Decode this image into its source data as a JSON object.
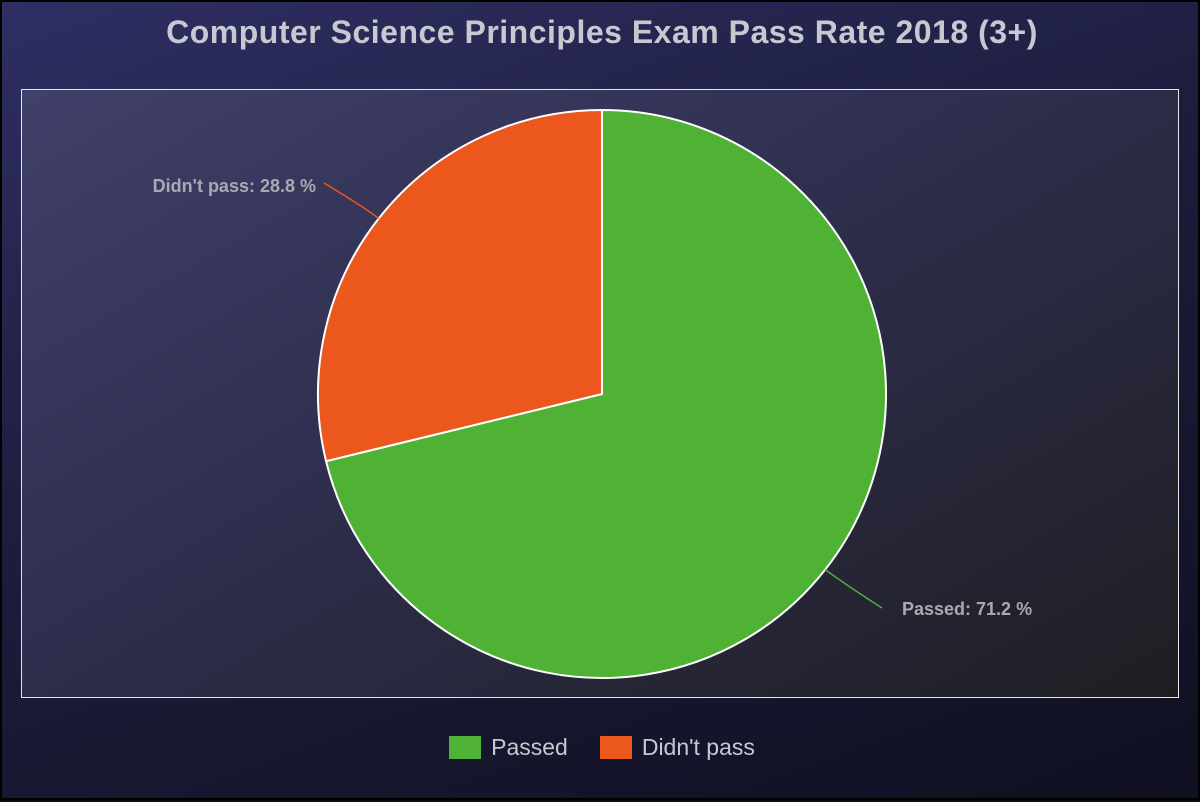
{
  "chart_data": {
    "type": "pie",
    "title": "Computer Science Principles Exam Pass Rate 2018 (3+)",
    "slices": [
      {
        "name": "Passed",
        "value": 71.2,
        "color": "#50b235",
        "label": "Passed: 71.2 %"
      },
      {
        "name": "Didn't pass",
        "value": 28.8,
        "color": "#ec571d",
        "label": "Didn't pass: 28.8 %"
      }
    ],
    "unit": "%",
    "legend": {
      "position": "bottom",
      "items": [
        "Passed",
        "Didn't pass"
      ]
    }
  }
}
